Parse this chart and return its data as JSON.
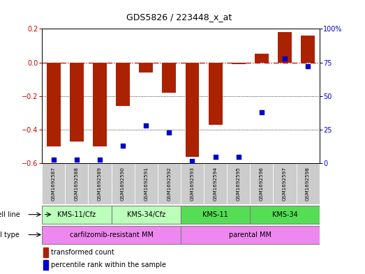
{
  "title": "GDS5826 / 223448_x_at",
  "samples": [
    "GSM1692587",
    "GSM1692588",
    "GSM1692589",
    "GSM1692590",
    "GSM1692591",
    "GSM1692592",
    "GSM1692593",
    "GSM1692594",
    "GSM1692595",
    "GSM1692596",
    "GSM1692597",
    "GSM1692598"
  ],
  "bar_values": [
    -0.5,
    -0.47,
    -0.5,
    -0.26,
    -0.06,
    -0.18,
    -0.56,
    -0.37,
    -0.01,
    0.05,
    0.18,
    0.16
  ],
  "blue_dot_values": [
    3,
    3,
    3,
    13,
    28,
    23,
    2,
    5,
    5,
    38,
    78,
    72
  ],
  "bar_color": "#aa2200",
  "dot_color": "#0000cc",
  "ylim_left": [
    -0.6,
    0.2
  ],
  "ylim_right": [
    0,
    100
  ],
  "yticks_left": [
    -0.6,
    -0.4,
    -0.2,
    0.0,
    0.2
  ],
  "yticks_right": [
    0,
    25,
    50,
    75,
    100
  ],
  "ytick_labels_right": [
    "0",
    "25",
    "50",
    "75",
    "100%"
  ],
  "cell_line_groups": [
    {
      "label": "KMS-11/Cfz",
      "start": 0,
      "end": 3,
      "color": "#bbffbb"
    },
    {
      "label": "KMS-34/Cfz",
      "start": 3,
      "end": 6,
      "color": "#bbffbb"
    },
    {
      "label": "KMS-11",
      "start": 6,
      "end": 9,
      "color": "#55dd55"
    },
    {
      "label": "KMS-34",
      "start": 9,
      "end": 12,
      "color": "#55dd55"
    }
  ],
  "cell_type_groups": [
    {
      "label": "carfilzomib-resistant MM",
      "start": 0,
      "end": 6,
      "color": "#ee88ee"
    },
    {
      "label": "parental MM",
      "start": 6,
      "end": 12,
      "color": "#ee88ee"
    }
  ],
  "cell_line_label": "cell line",
  "cell_type_label": "cell type",
  "legend_bar": "transformed count",
  "legend_dot": "percentile rank within the sample",
  "zeroline_color": "#cc0000",
  "background_plot": "#ffffff",
  "sample_box_color": "#cccccc"
}
